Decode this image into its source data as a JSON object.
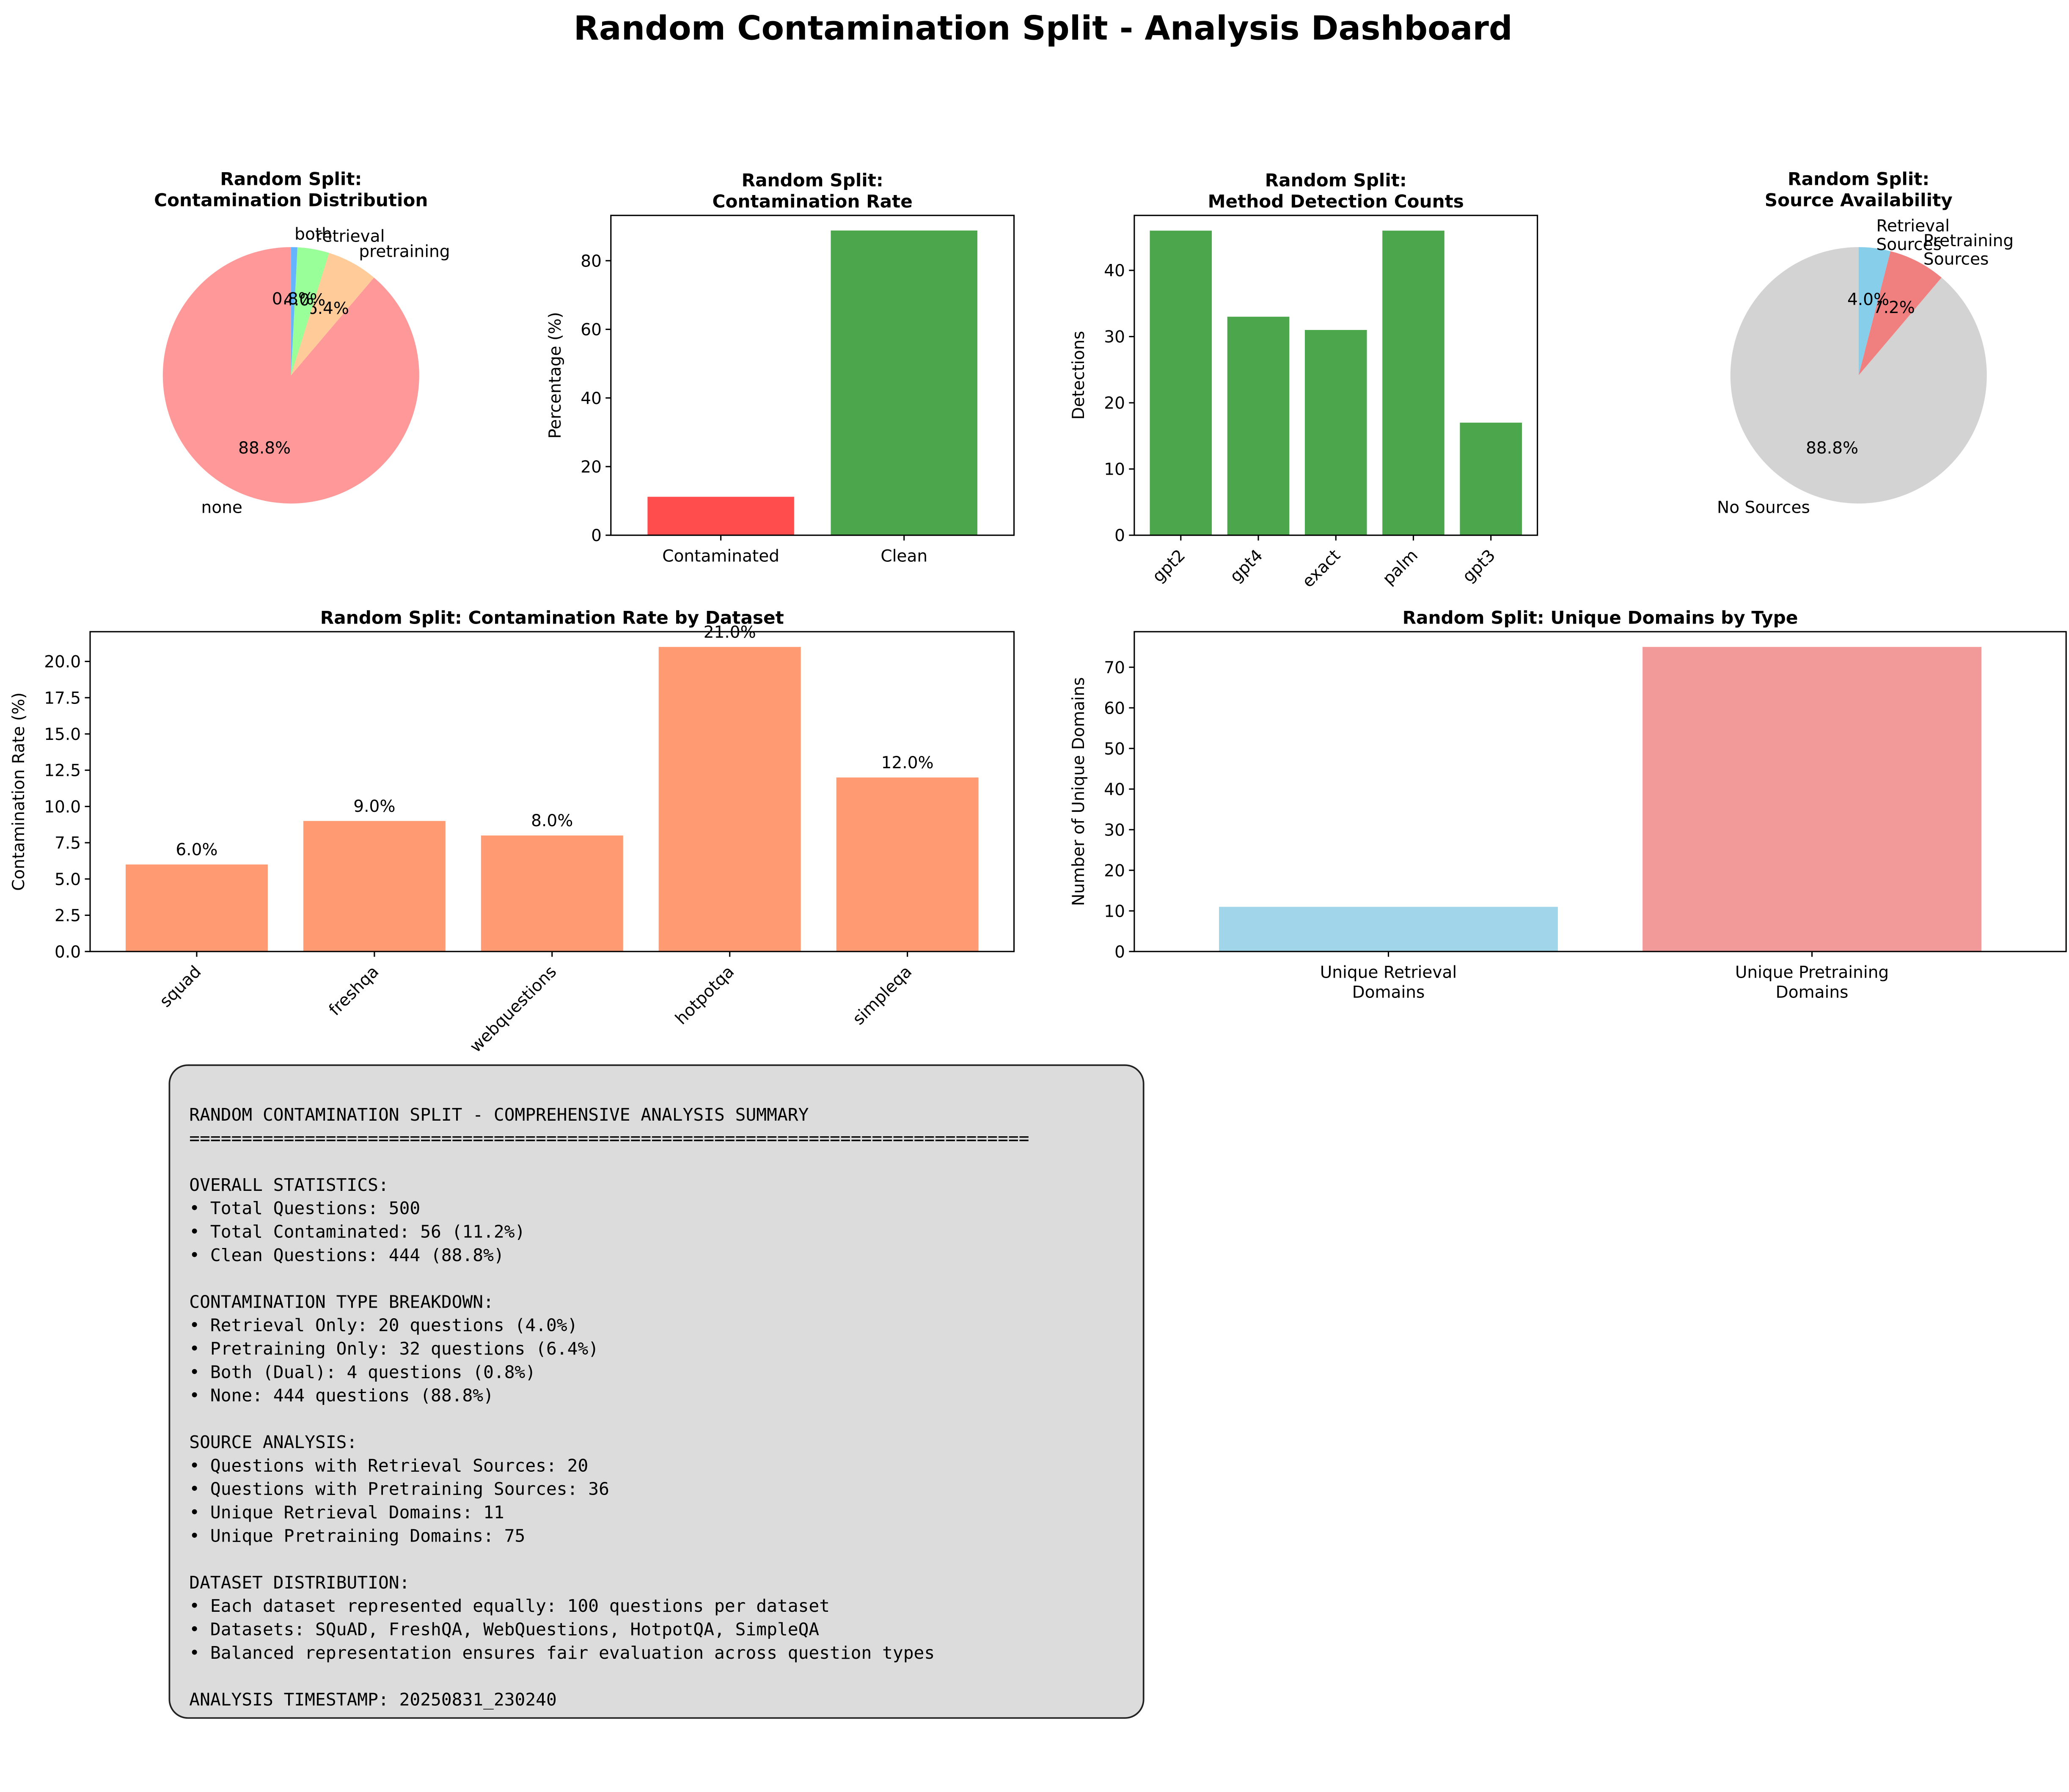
{
  "dashboard": {
    "title": "Random Contamination Split - Analysis Dashboard"
  },
  "chart_data": [
    {
      "type": "pie",
      "title": "Random Split:\nContamination Distribution",
      "labels": [
        "none",
        "pretraining",
        "retrieval",
        "both"
      ],
      "values": [
        88.8,
        6.4,
        4.0,
        0.8
      ],
      "percent_labels": [
        "88.8%",
        "6.4%",
        "4.0%",
        "0.8%"
      ],
      "colors": [
        "#ff9999",
        "#ffcc99",
        "#99ff99",
        "#66b3ff"
      ]
    },
    {
      "type": "bar",
      "title": "Random Split:\nContamination Rate",
      "categories": [
        "Contaminated",
        "Clean"
      ],
      "values": [
        11.2,
        88.8
      ],
      "xlabel": "",
      "ylabel": "Percentage (%)",
      "ylim": [
        0,
        93.2
      ],
      "yticks": [
        0,
        20,
        40,
        60,
        80
      ],
      "colors": [
        "#ff4c4c",
        "#4ca64c"
      ]
    },
    {
      "type": "bar",
      "title": "Random Split:\nMethod Detection Counts",
      "categories": [
        "gpt2",
        "gpt4",
        "exact",
        "palm",
        "gpt3"
      ],
      "values": [
        46,
        33,
        31,
        46,
        17
      ],
      "xlabel": "",
      "ylabel": "Detections",
      "ylim": [
        0,
        48.3
      ],
      "yticks": [
        0,
        10,
        20,
        30,
        40
      ],
      "colors": [
        "#4ca64c"
      ]
    },
    {
      "type": "pie",
      "title": "Random Split:\nSource Availability",
      "labels": [
        "No Sources",
        "Pretraining\nSources",
        "Retrieval\nSources"
      ],
      "values": [
        88.8,
        7.2,
        4.0
      ],
      "percent_labels": [
        "88.8%",
        "7.2%",
        "4.0%"
      ],
      "colors": [
        "#d3d3d3",
        "#f08080",
        "#87ceeb"
      ]
    },
    {
      "type": "bar",
      "title": "Random Split: Contamination Rate by Dataset",
      "categories": [
        "squad",
        "freshqa",
        "webquestions",
        "hotpotqa",
        "simpleqa"
      ],
      "values": [
        6.0,
        9.0,
        8.0,
        21.0,
        12.0
      ],
      "data_labels": [
        "6.0%",
        "9.0%",
        "8.0%",
        "21.0%",
        "12.0%"
      ],
      "xlabel": "",
      "ylabel": "Contamination Rate (%)",
      "ylim": [
        0,
        22.05
      ],
      "yticks": [
        0.0,
        2.5,
        5.0,
        7.5,
        10.0,
        12.5,
        15.0,
        17.5,
        20.0
      ],
      "colors": [
        "#ff9a73"
      ]
    },
    {
      "type": "bar",
      "title": "Random Split: Unique Domains by Type",
      "categories": [
        "Unique Retrieval\nDomains",
        "Unique Pretraining\nDomains"
      ],
      "values": [
        11,
        75
      ],
      "xlabel": "",
      "ylabel": "Number of Unique Domains",
      "ylim": [
        0,
        78.75
      ],
      "yticks": [
        0,
        10,
        20,
        30,
        40,
        50,
        60,
        70
      ],
      "colors": [
        "#a0d5ea",
        "#f29a9a"
      ]
    }
  ],
  "summary": {
    "lines": [
      "RANDOM CONTAMINATION SPLIT - COMPREHENSIVE ANALYSIS SUMMARY",
      "================================================================================",
      "",
      "OVERALL STATISTICS:",
      "• Total Questions: 500",
      "• Total Contaminated: 56 (11.2%)",
      "• Clean Questions: 444 (88.8%)",
      "",
      "CONTAMINATION TYPE BREAKDOWN:",
      "• Retrieval Only: 20 questions (4.0%)",
      "• Pretraining Only: 32 questions (6.4%)",
      "• Both (Dual): 4 questions (0.8%)",
      "• None: 444 questions (88.8%)",
      "",
      "SOURCE ANALYSIS:",
      "• Questions with Retrieval Sources: 20",
      "• Questions with Pretraining Sources: 36",
      "• Unique Retrieval Domains: 11",
      "• Unique Pretraining Domains: 75",
      "",
      "DATASET DISTRIBUTION:",
      "• Each dataset represented equally: 100 questions per dataset",
      "• Datasets: SQuAD, FreshQA, WebQuestions, HotpotQA, SimpleQA",
      "• Balanced representation ensures fair evaluation across question types",
      "",
      "ANALYSIS TIMESTAMP: 20250831_230240"
    ]
  }
}
